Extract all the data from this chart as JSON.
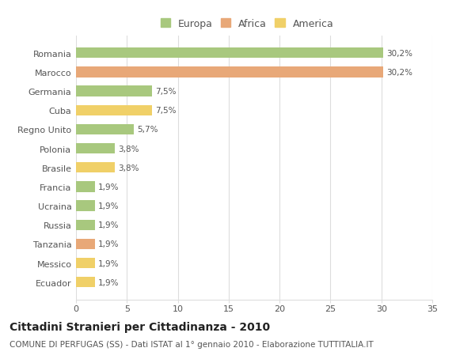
{
  "categories": [
    "Romania",
    "Marocco",
    "Germania",
    "Cuba",
    "Regno Unito",
    "Polonia",
    "Brasile",
    "Francia",
    "Ucraina",
    "Russia",
    "Tanzania",
    "Messico",
    "Ecuador"
  ],
  "values": [
    30.2,
    30.2,
    7.5,
    7.5,
    5.7,
    3.8,
    3.8,
    1.9,
    1.9,
    1.9,
    1.9,
    1.9,
    1.9
  ],
  "labels": [
    "30,2%",
    "30,2%",
    "7,5%",
    "7,5%",
    "5,7%",
    "3,8%",
    "3,8%",
    "1,9%",
    "1,9%",
    "1,9%",
    "1,9%",
    "1,9%",
    "1,9%"
  ],
  "continents": [
    "Europa",
    "Africa",
    "Europa",
    "America",
    "Europa",
    "Europa",
    "America",
    "Europa",
    "Europa",
    "Europa",
    "Africa",
    "America",
    "America"
  ],
  "colors": {
    "Europa": "#a8c87e",
    "Africa": "#e8a878",
    "America": "#f0d068"
  },
  "title": "Cittadini Stranieri per Cittadinanza - 2010",
  "subtitle": "COMUNE DI PERFUGAS (SS) - Dati ISTAT al 1° gennaio 2010 - Elaborazione TUTTITALIA.IT",
  "xlim": [
    0,
    35
  ],
  "xticks": [
    0,
    5,
    10,
    15,
    20,
    25,
    30,
    35
  ],
  "background_color": "#ffffff",
  "plot_bg_color": "#ffffff",
  "grid_color": "#dddddd",
  "bar_height": 0.55,
  "title_fontsize": 10,
  "subtitle_fontsize": 7.5,
  "label_fontsize": 7.5,
  "tick_fontsize": 8,
  "legend_fontsize": 9,
  "text_color": "#555555",
  "title_color": "#222222"
}
